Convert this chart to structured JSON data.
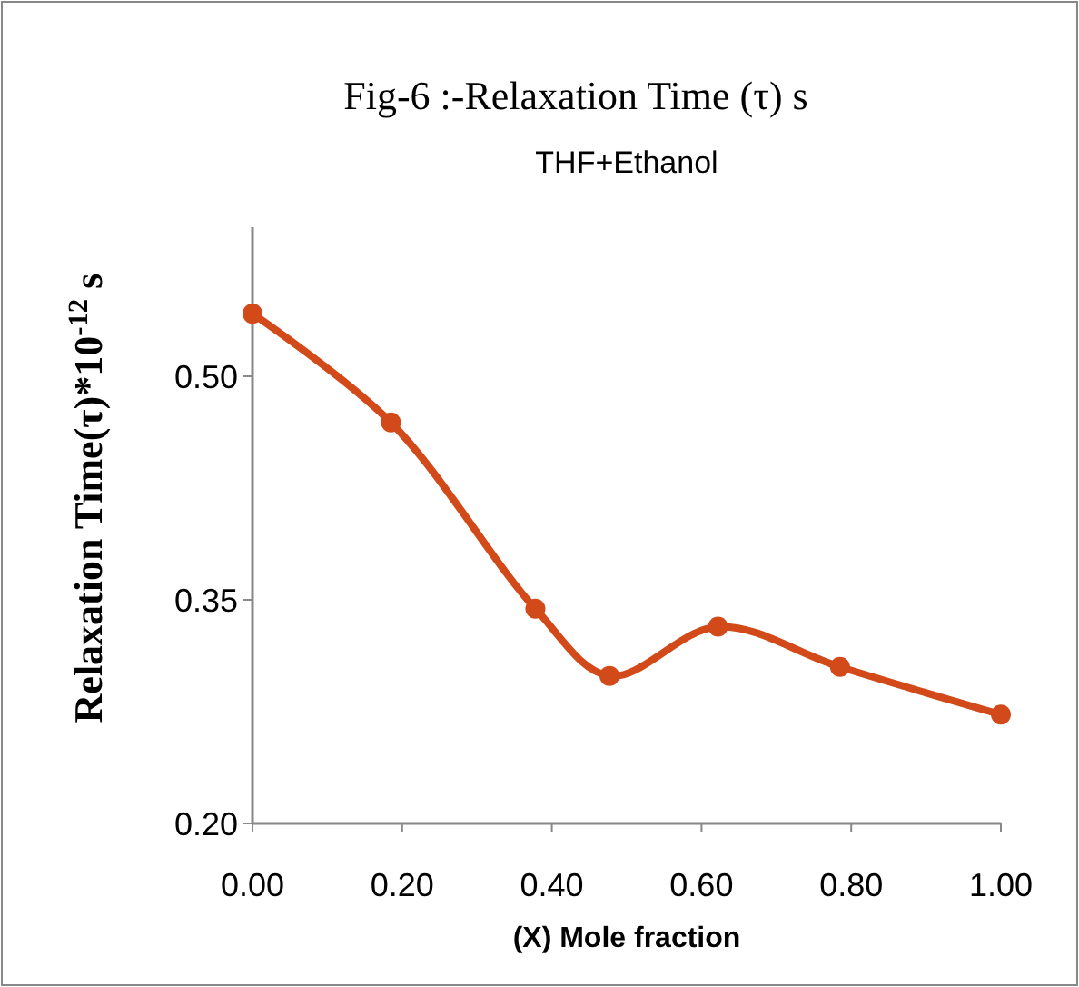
{
  "chart_data": {
    "type": "line",
    "title": "Fig-6 :-Relaxation Time  (τ) s",
    "subtitle": "THF+Ethanol",
    "xlabel": "(X) Mole fraction",
    "ylabel": "Relaxation Time(τ)*10$^{-12}$ s",
    "x": [
      0,
      0.185,
      0.378,
      0.477,
      0.622,
      0.785,
      1
    ],
    "series": [
      {
        "color": "#d24a1a",
        "values": [
          0.542,
          0.469,
          0.344,
          0.299,
          0.332,
          0.305,
          0.273
        ]
      }
    ],
    "xlim": [
      0,
      1
    ],
    "xticks": [
      {
        "value": 0,
        "label": "0.00"
      },
      {
        "value": 0.2,
        "label": "0.20"
      },
      {
        "value": 0.4,
        "label": "0.40"
      },
      {
        "value": 0.6,
        "label": "0.60"
      },
      {
        "value": 0.8,
        "label": "0.80"
      },
      {
        "value": 1,
        "label": "1.00"
      }
    ],
    "ylim": [
      0.2,
      0.6
    ],
    "yticks": [
      {
        "value": 0.2,
        "label": "0.20"
      },
      {
        "value": 0.35,
        "label": "0.35"
      },
      {
        "value": 0.5,
        "label": "0.50"
      }
    ],
    "grid": false,
    "marker": "circle",
    "line_style": "solid"
  }
}
